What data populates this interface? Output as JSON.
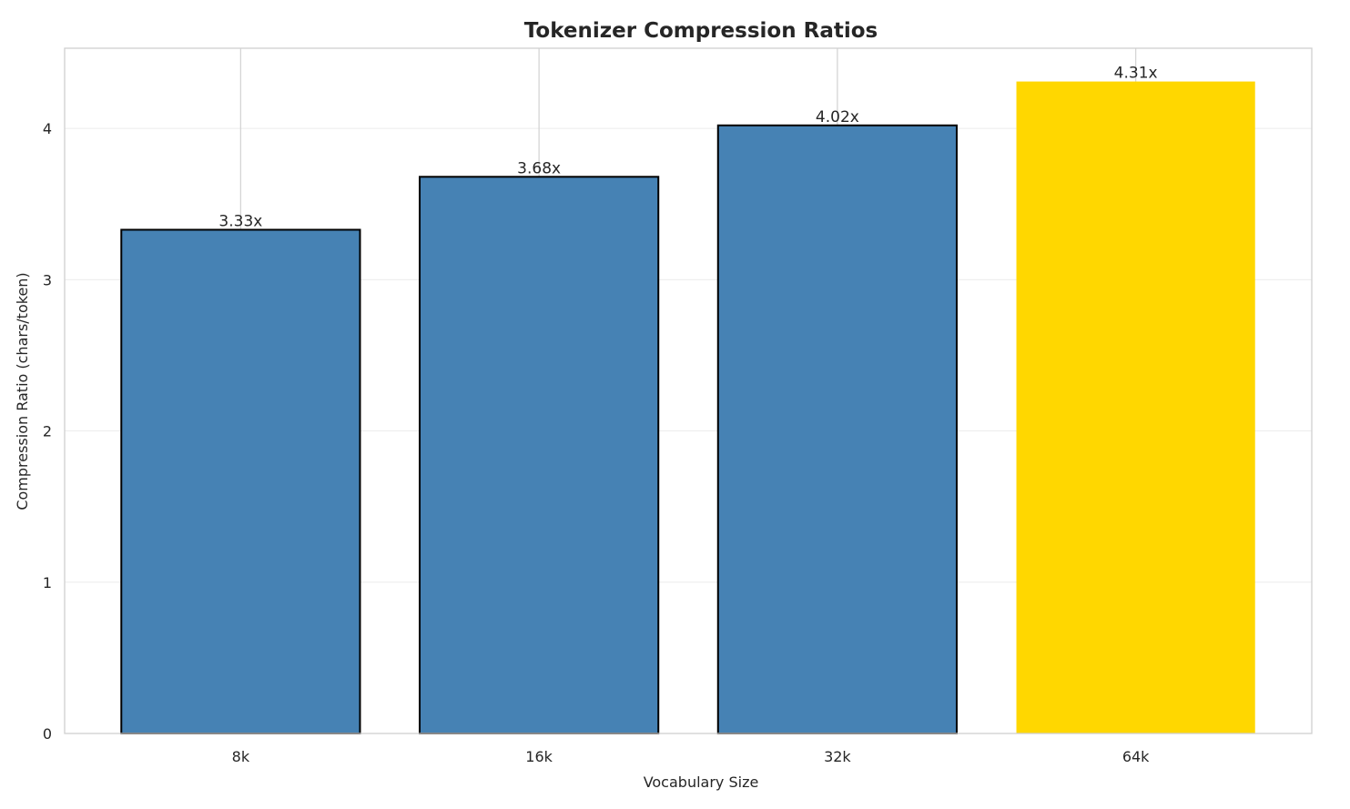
{
  "chart_data": {
    "type": "bar",
    "title": "Tokenizer Compression Ratios",
    "xlabel": "Vocabulary Size",
    "ylabel": "Compression Ratio (chars/token)",
    "categories": [
      "8k",
      "16k",
      "32k",
      "64k"
    ],
    "values": [
      3.33,
      3.68,
      4.02,
      4.31
    ],
    "data_labels": [
      "3.33x",
      "3.68x",
      "4.02x",
      "4.31x"
    ],
    "bar_colors": [
      "#4682b4",
      "#4682b4",
      "#4682b4",
      "#ffd700"
    ],
    "bar_edge": [
      true,
      true,
      true,
      false
    ],
    "ylim": [
      0,
      4.53
    ],
    "yticks": [
      0,
      1,
      2,
      3,
      4
    ],
    "grid": true,
    "legend": "none"
  }
}
